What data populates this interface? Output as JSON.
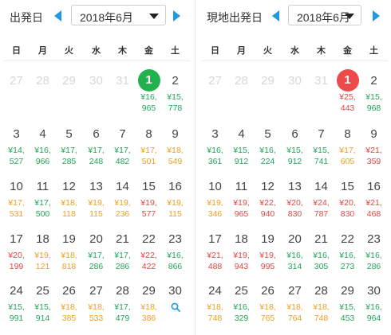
{
  "colors": {
    "accent": "#1e9be0",
    "cheap": "#22a65a",
    "mid": "#f0a020",
    "expensive": "#e64545",
    "selected_green": "#21b24e",
    "selected_red": "#ef4a4a"
  },
  "weekdays": [
    "日",
    "月",
    "火",
    "水",
    "木",
    "金",
    "土"
  ],
  "panels": [
    {
      "title": "出発日",
      "month": "2018年6月",
      "rows": [
        [
          {
            "day": "27",
            "dim": true
          },
          {
            "day": "28",
            "dim": true
          },
          {
            "day": "29",
            "dim": true
          },
          {
            "day": "30",
            "dim": true
          },
          {
            "day": "31",
            "dim": true
          },
          {
            "day": "1",
            "selected": "green",
            "p1": "¥16,",
            "p2": "965",
            "color": "green"
          },
          {
            "day": "2",
            "p1": "¥15,",
            "p2": "778",
            "color": "green"
          }
        ],
        [
          {
            "day": "3",
            "p1": "¥14,",
            "p2": "527",
            "color": "green"
          },
          {
            "day": "4",
            "p1": "¥16,",
            "p2": "966",
            "color": "green"
          },
          {
            "day": "5",
            "p1": "¥17,",
            "p2": "285",
            "color": "green"
          },
          {
            "day": "6",
            "p1": "¥17,",
            "p2": "248",
            "color": "green"
          },
          {
            "day": "7",
            "p1": "¥17,",
            "p2": "482",
            "color": "green"
          },
          {
            "day": "8",
            "p1": "¥17,",
            "p2": "501",
            "color": "orange"
          },
          {
            "day": "9",
            "p1": "¥18,",
            "p2": "549",
            "color": "orange"
          }
        ],
        [
          {
            "day": "10",
            "p1": "¥17,",
            "p2": "531",
            "color": "orange"
          },
          {
            "day": "11",
            "p1": "¥17,",
            "p2": "500",
            "color": "green"
          },
          {
            "day": "12",
            "p1": "¥18,",
            "p2": "118",
            "color": "orange"
          },
          {
            "day": "13",
            "p1": "¥19,",
            "p2": "115",
            "color": "orange"
          },
          {
            "day": "14",
            "p1": "¥19,",
            "p2": "236",
            "color": "orange"
          },
          {
            "day": "15",
            "p1": "¥19,",
            "p2": "577",
            "color": "red"
          },
          {
            "day": "16",
            "p1": "¥19,",
            "p2": "115",
            "color": "orange"
          }
        ],
        [
          {
            "day": "17",
            "p1": "¥20,",
            "p2": "199",
            "color": "red"
          },
          {
            "day": "18",
            "p1": "¥19,",
            "p2": "121",
            "color": "orange"
          },
          {
            "day": "19",
            "p1": "¥18,",
            "p2": "818",
            "color": "orange"
          },
          {
            "day": "20",
            "p1": "¥17,",
            "p2": "286",
            "color": "green"
          },
          {
            "day": "21",
            "p1": "¥17,",
            "p2": "286",
            "color": "green"
          },
          {
            "day": "22",
            "p1": "¥22,",
            "p2": "422",
            "color": "red"
          },
          {
            "day": "23",
            "p1": "¥16,",
            "p2": "866",
            "color": "green"
          }
        ],
        [
          {
            "day": "24",
            "p1": "¥15,",
            "p2": "991",
            "color": "green"
          },
          {
            "day": "25",
            "p1": "¥15,",
            "p2": "914",
            "color": "green"
          },
          {
            "day": "26",
            "p1": "¥18,",
            "p2": "385",
            "color": "orange"
          },
          {
            "day": "27",
            "p1": "¥18,",
            "p2": "533",
            "color": "orange"
          },
          {
            "day": "28",
            "p1": "¥17,",
            "p2": "479",
            "color": "green"
          },
          {
            "day": "29",
            "p1": "¥18,",
            "p2": "386",
            "color": "orange"
          },
          {
            "day": "30",
            "search": true
          }
        ]
      ]
    },
    {
      "title": "現地出発日",
      "month": "2018年6月",
      "rows": [
        [
          {
            "day": "27",
            "dim": true
          },
          {
            "day": "28",
            "dim": true
          },
          {
            "day": "29",
            "dim": true
          },
          {
            "day": "30",
            "dim": true
          },
          {
            "day": "31",
            "dim": true
          },
          {
            "day": "1",
            "selected": "red",
            "p1": "¥25,",
            "p2": "443",
            "color": "red"
          },
          {
            "day": "2",
            "p1": "¥15,",
            "p2": "968",
            "color": "green"
          }
        ],
        [
          {
            "day": "3",
            "p1": "¥16,",
            "p2": "361",
            "color": "green"
          },
          {
            "day": "4",
            "p1": "¥15,",
            "p2": "912",
            "color": "green"
          },
          {
            "day": "5",
            "p1": "¥16,",
            "p2": "224",
            "color": "green"
          },
          {
            "day": "6",
            "p1": "¥15,",
            "p2": "912",
            "color": "green"
          },
          {
            "day": "7",
            "p1": "¥15,",
            "p2": "741",
            "color": "green"
          },
          {
            "day": "8",
            "p1": "¥17,",
            "p2": "605",
            "color": "orange"
          },
          {
            "day": "9",
            "p1": "¥21,",
            "p2": "359",
            "color": "red"
          }
        ],
        [
          {
            "day": "10",
            "p1": "¥19,",
            "p2": "346",
            "color": "orange"
          },
          {
            "day": "11",
            "p1": "¥19,",
            "p2": "965",
            "color": "red"
          },
          {
            "day": "12",
            "p1": "¥22,",
            "p2": "940",
            "color": "red"
          },
          {
            "day": "13",
            "p1": "¥20,",
            "p2": "830",
            "color": "red"
          },
          {
            "day": "14",
            "p1": "¥24,",
            "p2": "787",
            "color": "red"
          },
          {
            "day": "15",
            "p1": "¥20,",
            "p2": "830",
            "color": "red"
          },
          {
            "day": "16",
            "p1": "¥21,",
            "p2": "468",
            "color": "red"
          }
        ],
        [
          {
            "day": "17",
            "p1": "¥21,",
            "p2": "488",
            "color": "red"
          },
          {
            "day": "18",
            "p1": "¥19,",
            "p2": "943",
            "color": "red"
          },
          {
            "day": "19",
            "p1": "¥19,",
            "p2": "995",
            "color": "red"
          },
          {
            "day": "20",
            "p1": "¥16,",
            "p2": "314",
            "color": "green"
          },
          {
            "day": "21",
            "p1": "¥16,",
            "p2": "305",
            "color": "green"
          },
          {
            "day": "22",
            "p1": "¥16,",
            "p2": "273",
            "color": "green"
          },
          {
            "day": "23",
            "p1": "¥16,",
            "p2": "286",
            "color": "green"
          }
        ],
        [
          {
            "day": "24",
            "p1": "¥18,",
            "p2": "748",
            "color": "orange"
          },
          {
            "day": "25",
            "p1": "¥16,",
            "p2": "329",
            "color": "green"
          },
          {
            "day": "26",
            "p1": "¥18,",
            "p2": "765",
            "color": "orange"
          },
          {
            "day": "27",
            "p1": "¥18,",
            "p2": "764",
            "color": "orange"
          },
          {
            "day": "28",
            "p1": "¥18,",
            "p2": "748",
            "color": "orange"
          },
          {
            "day": "29",
            "p1": "¥15,",
            "p2": "453",
            "color": "green"
          },
          {
            "day": "30",
            "p1": "¥16,",
            "p2": "964",
            "color": "green"
          }
        ]
      ]
    }
  ]
}
